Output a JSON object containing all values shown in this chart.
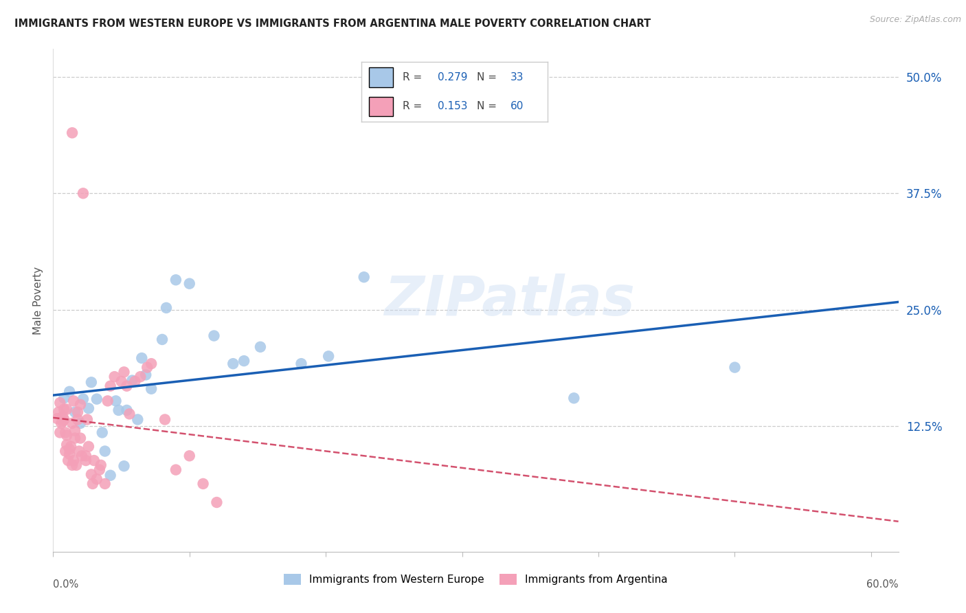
{
  "title": "IMMIGRANTS FROM WESTERN EUROPE VS IMMIGRANTS FROM ARGENTINA MALE POVERTY CORRELATION CHART",
  "source": "Source: ZipAtlas.com",
  "ylabel": "Male Poverty",
  "right_yticks": [
    0.0,
    0.125,
    0.25,
    0.375,
    0.5
  ],
  "right_yticklabels": [
    "",
    "12.5%",
    "25.0%",
    "37.5%",
    "50.0%"
  ],
  "xlim": [
    0.0,
    0.62
  ],
  "ylim": [
    -0.01,
    0.53
  ],
  "legend_label_blue": "Immigrants from Western Europe",
  "legend_label_pink": "Immigrants from Argentina",
  "blue_color": "#a8c8e8",
  "blue_line_color": "#1a5fb4",
  "pink_color": "#f4a0b8",
  "pink_line_color": "#cc3355",
  "watermark_text": "ZIPatlas",
  "grid_color": "#cccccc",
  "title_color": "#222222",
  "source_color": "#aaaaaa",
  "blue_scatter_x": [
    0.008,
    0.012,
    0.016,
    0.02,
    0.022,
    0.026,
    0.028,
    0.032,
    0.036,
    0.038,
    0.042,
    0.046,
    0.048,
    0.052,
    0.054,
    0.058,
    0.062,
    0.065,
    0.068,
    0.072,
    0.08,
    0.083,
    0.09,
    0.1,
    0.118,
    0.132,
    0.14,
    0.152,
    0.182,
    0.202,
    0.228,
    0.382,
    0.5
  ],
  "blue_scatter_y": [
    0.155,
    0.162,
    0.14,
    0.128,
    0.154,
    0.144,
    0.172,
    0.154,
    0.118,
    0.098,
    0.072,
    0.152,
    0.142,
    0.082,
    0.142,
    0.174,
    0.132,
    0.198,
    0.18,
    0.165,
    0.218,
    0.252,
    0.282,
    0.278,
    0.222,
    0.192,
    0.195,
    0.21,
    0.192,
    0.2,
    0.285,
    0.155,
    0.188
  ],
  "pink_scatter_x": [
    0.003,
    0.004,
    0.005,
    0.005,
    0.006,
    0.007,
    0.007,
    0.008,
    0.008,
    0.009,
    0.009,
    0.01,
    0.01,
    0.01,
    0.011,
    0.012,
    0.012,
    0.013,
    0.014,
    0.014,
    0.015,
    0.015,
    0.016,
    0.016,
    0.017,
    0.018,
    0.018,
    0.019,
    0.02,
    0.02,
    0.021,
    0.024,
    0.024,
    0.025,
    0.026,
    0.028,
    0.029,
    0.03,
    0.032,
    0.034,
    0.035,
    0.038,
    0.04,
    0.042,
    0.045,
    0.05,
    0.052,
    0.054,
    0.056,
    0.06,
    0.064,
    0.069,
    0.072,
    0.082,
    0.09,
    0.1,
    0.11,
    0.12,
    0.014,
    0.022
  ],
  "pink_scatter_y": [
    0.133,
    0.14,
    0.15,
    0.118,
    0.128,
    0.135,
    0.13,
    0.132,
    0.143,
    0.098,
    0.118,
    0.105,
    0.115,
    0.143,
    0.088,
    0.1,
    0.095,
    0.103,
    0.128,
    0.083,
    0.088,
    0.152,
    0.112,
    0.12,
    0.083,
    0.132,
    0.14,
    0.098,
    0.112,
    0.148,
    0.093,
    0.088,
    0.093,
    0.132,
    0.103,
    0.073,
    0.063,
    0.088,
    0.068,
    0.078,
    0.083,
    0.063,
    0.152,
    0.168,
    0.178,
    0.173,
    0.183,
    0.168,
    0.138,
    0.173,
    0.178,
    0.188,
    0.192,
    0.132,
    0.078,
    0.093,
    0.063,
    0.043,
    0.44,
    0.375
  ]
}
